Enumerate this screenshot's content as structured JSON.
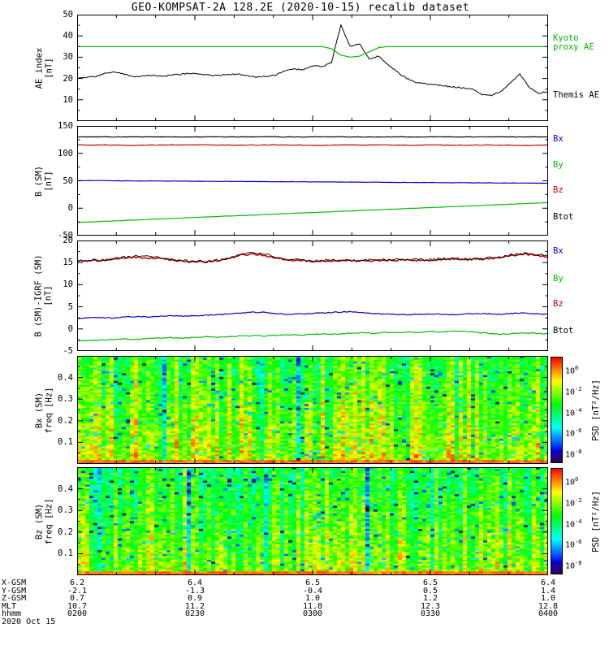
{
  "title": "GEO-KOMPSAT-2A 128.2E (2020-10-15) recalib dataset",
  "colors": {
    "black": "#000000",
    "green": "#00bb00",
    "red": "#cc0000",
    "blue": "#0000cc",
    "background": "#ffffff"
  },
  "bottom_axis": {
    "rows": [
      {
        "label": "X-GSM",
        "values": [
          "6.2",
          "6.4",
          "6.5",
          "6.5",
          "6.4"
        ]
      },
      {
        "label": "Y-GSM",
        "values": [
          "-2.1",
          "-1.3",
          "-0.4",
          "0.5",
          "1.4"
        ]
      },
      {
        "label": "Z-GSM",
        "values": [
          "0.7",
          "0.9",
          "1.0",
          "1.2",
          "1.0"
        ]
      },
      {
        "label": "MLT",
        "values": [
          "10.7",
          "11.2",
          "11.8",
          "12.3",
          "12.8"
        ]
      },
      {
        "label": "hhmm",
        "values": [
          "0200",
          "0230",
          "0300",
          "0330",
          "0400"
        ]
      }
    ],
    "date_label": "2020 Oct 15"
  },
  "chart_data": [
    {
      "type": "line",
      "panel": "ae_index",
      "ylabel_lines": [
        "AE index",
        "[nT]"
      ],
      "ylim": [
        0,
        50
      ],
      "yticks": [
        10,
        20,
        30,
        40,
        50
      ],
      "x_range_hhmm": [
        "0200",
        "0400"
      ],
      "series": [
        {
          "name": "Themis AE",
          "color": "#000000",
          "width": 1,
          "noise": 0.3,
          "values": [
            20,
            20.5,
            21,
            22.5,
            23,
            22,
            21,
            21,
            21.5,
            21,
            21.5,
            22,
            22.5,
            22,
            21.5,
            21.5,
            22,
            22,
            21.5,
            20.5,
            21,
            21.5,
            23.5,
            24.5,
            24,
            26,
            25.5,
            27.5,
            45,
            35,
            36.5,
            29,
            30.5,
            26.5,
            23,
            20,
            18,
            17.5,
            17,
            16.5,
            16,
            15.5,
            15,
            12.5,
            12,
            14,
            18,
            22,
            16,
            13,
            14
          ]
        },
        {
          "name": "Kyoto proxy AE",
          "color": "#00bb00",
          "width": 1.2,
          "noise": 0,
          "values": [
            35,
            35,
            35,
            35,
            35,
            35,
            35,
            35,
            35,
            35,
            35,
            35,
            35,
            35,
            35,
            35,
            35,
            35,
            35,
            35,
            35,
            35,
            35,
            35,
            35,
            35,
            35,
            34,
            31,
            30,
            30.5,
            32.5,
            34.5,
            35,
            35,
            35,
            35,
            35,
            35,
            35,
            35,
            35,
            35,
            35,
            35,
            35,
            35,
            35,
            35,
            35,
            35
          ]
        }
      ],
      "right_labels": [
        {
          "lines": [
            "Kyoto",
            "proxy AE"
          ],
          "color": "#00bb00",
          "frac": 0.27
        },
        {
          "lines": [
            "Themis AE"
          ],
          "color": "#000000",
          "frac": 0.76
        }
      ]
    },
    {
      "type": "line",
      "panel": "b_sm",
      "ylabel_lines": [
        "B (SM)",
        "[nT]"
      ],
      "ylim": [
        -50,
        150
      ],
      "yticks": [
        -50,
        0,
        50,
        100,
        150
      ],
      "series": [
        {
          "name": "Btot",
          "color": "#000000",
          "width": 1.2,
          "noise": 0.4,
          "values": [
            129.8,
            130,
            129.9,
            130.1,
            130,
            129.9,
            130.1,
            130,
            129.9,
            130,
            130.1,
            129.9,
            130,
            130.1,
            130,
            129.9,
            130,
            130.1,
            129.9,
            130,
            130,
            129.9,
            130.1,
            130,
            129.9,
            130
          ]
        },
        {
          "name": "Bz",
          "color": "#cc0000",
          "width": 1.2,
          "noise": 0.5,
          "values": [
            115.4,
            115.2,
            115.5,
            114.7,
            115.1,
            115.4,
            115,
            115.3,
            115.1,
            114.9,
            115.2,
            115.4,
            115.1,
            114.8,
            115.2,
            115,
            115.3,
            115.1,
            114.9,
            115.2,
            115,
            115.1,
            115.3,
            115,
            114.7,
            114.9
          ]
        },
        {
          "name": "Bx",
          "color": "#0000cc",
          "width": 1.2,
          "noise": 0.25,
          "values": [
            50.5,
            50.3,
            50.1,
            49.9,
            49.7,
            49.5,
            49.3,
            49.1,
            48.9,
            48.7,
            48.5,
            48.3,
            48.1,
            47.9,
            47.7,
            47.5,
            47.3,
            47.1,
            46.9,
            46.7,
            46.5,
            46.3,
            46.1,
            45.9,
            45.7,
            45.5
          ]
        },
        {
          "name": "By",
          "color": "#00bb00",
          "width": 1.2,
          "noise": 0.2,
          "values": [
            -26,
            -24.6,
            -23.1,
            -21.7,
            -20.2,
            -18.8,
            -17.3,
            -15.9,
            -14.4,
            -13,
            -11.5,
            -10.1,
            -8.6,
            -7.2,
            -5.7,
            -4.3,
            -2.8,
            -1.4,
            0.1,
            1.5,
            3,
            4.4,
            5.9,
            7.3,
            8.8,
            10
          ]
        }
      ],
      "right_labels": [
        {
          "lines": [
            "Bx"
          ],
          "color": "#0000cc",
          "frac": 0.12
        },
        {
          "lines": [
            "By"
          ],
          "color": "#00bb00",
          "frac": 0.36
        },
        {
          "lines": [
            "Bz"
          ],
          "color": "#cc0000",
          "frac": 0.59
        },
        {
          "lines": [
            "Btot"
          ],
          "color": "#000000",
          "frac": 0.83
        }
      ]
    },
    {
      "type": "line",
      "panel": "b_minus_igrf",
      "ylabel_lines": [
        "B (SM)-IGRF (SM)",
        "[nT]"
      ],
      "ylim": [
        -5,
        20
      ],
      "yticks": [
        -5,
        0,
        5,
        10,
        15,
        20
      ],
      "series": [
        {
          "name": "Bz",
          "color": "#cc0000",
          "width": 1.6,
          "noise": 0.2,
          "values": [
            15.3,
            15.4,
            15.5,
            15.8,
            16,
            16.2,
            16.1,
            15.9,
            15.6,
            15.3,
            15.1,
            15.2,
            15.5,
            16,
            16.7,
            17,
            16.6,
            16,
            15.6,
            15.4,
            15.3,
            15.4,
            15.4,
            15.5,
            15.4,
            15.4,
            15.5,
            15.5,
            15.6,
            15.5,
            15.6,
            15.7,
            15.8,
            15.7,
            15.8,
            15.9,
            16.1,
            16.6,
            16.9,
            16.7,
            16.3
          ]
        },
        {
          "name": "Btot",
          "color": "#000000",
          "width": 0.9,
          "noise": 0.3,
          "values": [
            15.4,
            15.5,
            15.6,
            15.9,
            16.2,
            16.4,
            16.3,
            16,
            15.7,
            15.4,
            15.2,
            15.3,
            15.6,
            16.2,
            16.9,
            17.2,
            16.8,
            16.1,
            15.7,
            15.5,
            15.4,
            15.5,
            15.5,
            15.6,
            15.5,
            15.5,
            15.6,
            15.6,
            15.7,
            15.6,
            15.7,
            15.8,
            15.9,
            15.8,
            15.9,
            16,
            16.3,
            16.8,
            17.1,
            16.9,
            16.4
          ]
        },
        {
          "name": "Bx",
          "color": "#0000cc",
          "width": 1.2,
          "noise": 0.1,
          "values": [
            2.4,
            2.5,
            2.6,
            2.5,
            2.7,
            2.8,
            2.7,
            2.9,
            3,
            2.9,
            3,
            3.1,
            3.2,
            3.4,
            3.6,
            3.8,
            3.7,
            3.5,
            3.3,
            3.4,
            3.5,
            3.6,
            3.8,
            3.9,
            3.7,
            3.5,
            3.4,
            3.3,
            3.2,
            3.3,
            3.4,
            3.3,
            3.2,
            3.4,
            3.5,
            3.4,
            3.3,
            3.5,
            3.6,
            3.4,
            3.3
          ]
        },
        {
          "name": "By",
          "color": "#00bb00",
          "width": 1.2,
          "noise": 0.1,
          "values": [
            -2.6,
            -2.7,
            -2.5,
            -2.4,
            -2.3,
            -2.4,
            -2.2,
            -2.1,
            -2,
            -2.1,
            -1.9,
            -1.8,
            -1.9,
            -1.7,
            -1.6,
            -1.5,
            -1.6,
            -1.4,
            -1.3,
            -1.4,
            -1.2,
            -1.1,
            -1.2,
            -1,
            -0.9,
            -1,
            -0.8,
            -0.9,
            -0.7,
            -0.8,
            -0.6,
            -0.7,
            -0.5,
            -0.6,
            -0.8,
            -1,
            -1.2,
            -1.1,
            -0.9,
            -1,
            -1.1
          ]
        }
      ],
      "right_labels": [
        {
          "lines": [
            "Bx"
          ],
          "color": "#0000cc",
          "frac": 0.1
        },
        {
          "lines": [
            "By"
          ],
          "color": "#00bb00",
          "frac": 0.35
        },
        {
          "lines": [
            "Bz"
          ],
          "color": "#cc0000",
          "frac": 0.58
        },
        {
          "lines": [
            "Btot"
          ],
          "color": "#000000",
          "frac": 0.82
        }
      ]
    },
    {
      "type": "heatmap",
      "panel": "bx_spectrogram",
      "ylabel_lines": [
        "Bx (SM)",
        "freq [Hz]"
      ],
      "ylim": [
        0,
        0.5
      ],
      "yticks": [
        0.1,
        0.2,
        0.3,
        0.4
      ],
      "colorbar": {
        "label": "PSD [nT²/Hz]",
        "tick_exponents": [
          0,
          -2,
          -4,
          -6,
          -8
        ]
      },
      "render": {
        "cols": 116,
        "rows": 56,
        "seed": 42,
        "warmth": 0.05
      }
    },
    {
      "type": "heatmap",
      "panel": "bz_spectrogram",
      "ylabel_lines": [
        "Bz (SM)",
        "freq [Hz]"
      ],
      "ylim": [
        0,
        0.5
      ],
      "yticks": [
        0.1,
        0.2,
        0.3,
        0.4
      ],
      "colorbar": {
        "label": "PSD [nT²/Hz]",
        "tick_exponents": [
          0,
          -2,
          -4,
          -6,
          -8
        ]
      },
      "render": {
        "cols": 116,
        "rows": 56,
        "seed": 77,
        "warmth": 0
      }
    }
  ]
}
